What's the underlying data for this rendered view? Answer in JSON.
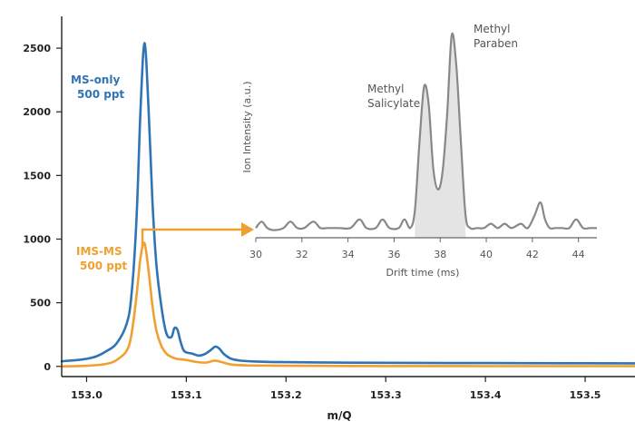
{
  "chart_data": [
    {
      "type": "line",
      "xlabel": "m/Q",
      "ylabel": "",
      "xlim": [
        152.975,
        153.55
      ],
      "ylim": [
        -80,
        2750
      ],
      "xticks": [
        "153.0",
        "153.1",
        "153.2",
        "153.3",
        "153.4",
        "153.5"
      ],
      "yticks": [
        "0",
        "500",
        "1000",
        "1500",
        "2000",
        "2500"
      ],
      "grid": false,
      "series": [
        {
          "name": "MS-only 500 ppt",
          "label_lines": [
            "MS-only",
            "500 ppt"
          ],
          "color": "#2f74b5",
          "x": [
            152.975,
            152.99,
            153.0,
            153.01,
            153.02,
            153.03,
            153.04,
            153.045,
            153.05,
            153.054,
            153.058,
            153.062,
            153.066,
            153.07,
            153.075,
            153.08,
            153.085,
            153.088,
            153.091,
            153.094,
            153.097,
            153.1,
            153.106,
            153.112,
            153.118,
            153.124,
            153.129,
            153.133,
            153.138,
            153.145,
            153.155,
            153.17,
            153.2,
            153.25,
            153.3,
            153.4,
            153.5,
            153.55
          ],
          "y": [
            40,
            50,
            60,
            80,
            120,
            180,
            330,
            560,
            1150,
            2000,
            2540,
            2050,
            1300,
            800,
            470,
            260,
            230,
            300,
            290,
            200,
            130,
            110,
            100,
            85,
            95,
            125,
            155,
            140,
            95,
            60,
            45,
            38,
            33,
            30,
            28,
            26,
            25,
            24
          ]
        },
        {
          "name": "IMS-MS 500 ppt",
          "label_lines": [
            "IMS-MS",
            "500 ppt"
          ],
          "color": "#f0a030",
          "x": [
            152.975,
            153.0,
            153.02,
            153.03,
            153.04,
            153.045,
            153.05,
            153.054,
            153.058,
            153.062,
            153.066,
            153.07,
            153.075,
            153.08,
            153.085,
            153.09,
            153.095,
            153.1,
            153.11,
            153.12,
            153.128,
            153.135,
            153.145,
            153.16,
            153.2,
            153.3,
            153.4,
            153.5,
            153.55
          ],
          "y": [
            0,
            5,
            20,
            50,
            120,
            250,
            550,
            850,
            970,
            760,
            480,
            280,
            160,
            100,
            75,
            60,
            55,
            50,
            35,
            30,
            45,
            35,
            15,
            8,
            5,
            3,
            2,
            2,
            2
          ]
        }
      ]
    },
    {
      "type": "area",
      "xlabel": "Drift time (ms)",
      "ylabel": "Ion Intensity (a.u.)",
      "xlim": [
        30,
        44.8
      ],
      "ylim": [
        0,
        1
      ],
      "xticks": [
        "30",
        "32",
        "34",
        "36",
        "38",
        "40",
        "42",
        "44"
      ],
      "grid": false,
      "series": [
        {
          "name": "",
          "color": "#888888",
          "fill": "#e4e4e4",
          "x": [
            30,
            30.25,
            30.5,
            30.8,
            31.2,
            31.5,
            31.8,
            32.1,
            32.5,
            32.8,
            33.1,
            33.6,
            34.1,
            34.5,
            34.8,
            35.2,
            35.5,
            35.8,
            36.2,
            36.45,
            36.7,
            36.9,
            37.1,
            37.3,
            37.5,
            37.7,
            37.9,
            38.1,
            38.3,
            38.5,
            38.7,
            38.9,
            39.1,
            39.3,
            39.6,
            39.9,
            40.2,
            40.5,
            40.8,
            41.1,
            41.5,
            41.8,
            42.1,
            42.35,
            42.55,
            42.75,
            43.0,
            43.3,
            43.6,
            43.9,
            44.2,
            44.5,
            44.8
          ],
          "y": [
            0.02,
            0.05,
            0.02,
            0.01,
            0.02,
            0.05,
            0.02,
            0.02,
            0.05,
            0.02,
            0.02,
            0.02,
            0.02,
            0.06,
            0.02,
            0.02,
            0.06,
            0.02,
            0.02,
            0.06,
            0.02,
            0.1,
            0.42,
            0.68,
            0.6,
            0.3,
            0.2,
            0.28,
            0.55,
            0.92,
            0.78,
            0.42,
            0.08,
            0.02,
            0.02,
            0.02,
            0.04,
            0.02,
            0.04,
            0.02,
            0.04,
            0.02,
            0.08,
            0.14,
            0.06,
            0.02,
            0.02,
            0.02,
            0.02,
            0.06,
            0.02,
            0.02,
            0.02
          ]
        }
      ],
      "annotations": [
        {
          "lines": [
            "Methyl",
            "Salicylate"
          ]
        },
        {
          "lines": [
            "Methyl",
            "Paraben"
          ]
        }
      ]
    }
  ]
}
